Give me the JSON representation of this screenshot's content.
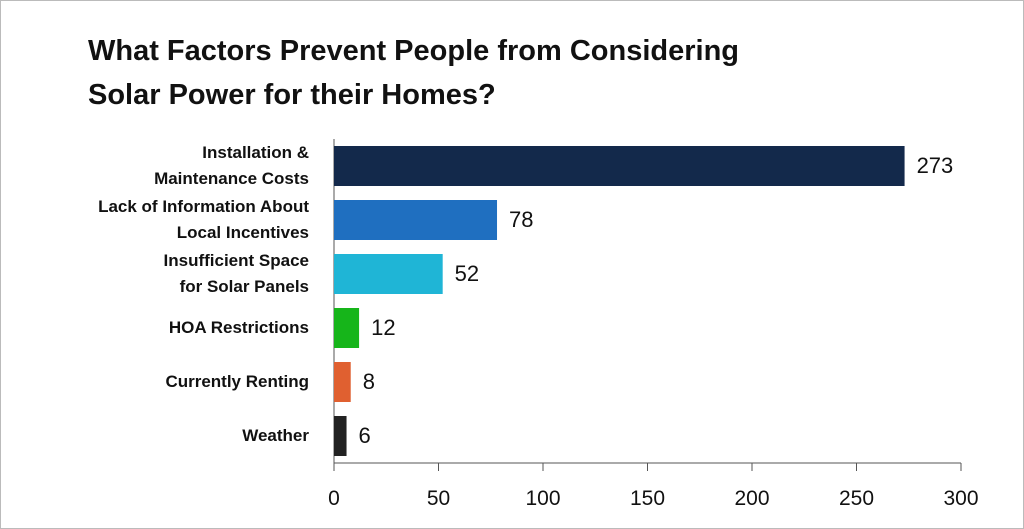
{
  "chart_data": {
    "type": "bar",
    "orientation": "horizontal",
    "title": "What Factors Prevent People from Considering\nSolar Power for their Homes?",
    "categories": [
      "Installation &\nMaintenance Costs",
      "Lack of Information About\nLocal Incentives",
      "Insufficient Space\nfor Solar Panels",
      "HOA Restrictions",
      "Currently Renting",
      "Weather"
    ],
    "values": [
      273,
      78,
      52,
      12,
      8,
      6
    ],
    "colors": [
      "#13294b",
      "#1f6fc0",
      "#1fb5d6",
      "#16b51a",
      "#e06030",
      "#222222"
    ],
    "xlim": [
      0,
      300
    ],
    "xticks": [
      0,
      50,
      100,
      150,
      200,
      250,
      300
    ],
    "grid": false
  }
}
